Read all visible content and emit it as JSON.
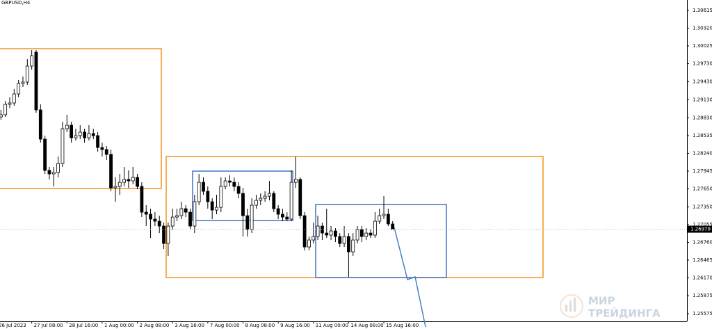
{
  "chart_data": {
    "type": "candlestick",
    "title": "GBPUSD,H4",
    "current_price_path": null,
    "categories": [
      "26 Jul 2023",
      null,
      null,
      null,
      null,
      null,
      null,
      null,
      "27 Jul 08:00",
      null,
      null,
      null,
      null,
      null,
      null,
      null,
      "28 Jul 16:00",
      null,
      null,
      null,
      null,
      null,
      null,
      null,
      "1 Aug 00:00",
      null,
      null,
      null,
      null,
      null,
      null,
      null,
      "2 Aug 08:00",
      null,
      null,
      null,
      null,
      null,
      null,
      null,
      "3 Aug 16:00",
      null,
      null,
      null,
      null,
      null,
      null,
      null,
      "7 Aug 00:00",
      null,
      null,
      null,
      null,
      null,
      null,
      null,
      "8 Aug 08:00",
      null,
      null,
      null,
      null,
      null,
      null,
      null,
      "9 Aug 16:00",
      null,
      null,
      null,
      null,
      null,
      null,
      null,
      "11 Aug 00:00",
      null,
      null,
      null,
      null,
      null,
      null,
      null,
      "14 Aug 08:00",
      null,
      null,
      null,
      null,
      null,
      null,
      null,
      "15 Aug 16:00",
      null,
      null
    ],
    "open": [
      1.288,
      1.28846,
      1.28881,
      1.29054,
      1.29077,
      1.29227,
      1.29401,
      1.29424,
      1.2969,
      1.29921,
      1.28962,
      1.28476,
      1.27956,
      1.27898,
      1.27921,
      1.28071,
      1.28649,
      1.28707,
      1.28499,
      1.28534,
      1.28592,
      1.28499,
      1.28569,
      1.28534,
      1.28337,
      1.28303,
      1.28222,
      1.27667,
      1.2769,
      1.27759,
      1.27806,
      1.27782,
      1.2784,
      1.2769,
      1.27262,
      1.27228,
      1.27147,
      1.27112,
      1.27031,
      1.26742,
      1.27031,
      1.27181,
      1.27204,
      1.2732,
      1.27262,
      1.27031,
      1.27436,
      1.27759,
      1.27609,
      1.27436,
      1.27297,
      1.27343,
      1.2769,
      1.27782,
      1.27759,
      1.2769,
      1.27574,
      1.27204,
      1.26973,
      1.27378,
      1.27459,
      1.27493,
      1.27528,
      1.27574,
      1.2732,
      1.27228,
      1.27181,
      1.27147,
      1.27759,
      1.27806,
      1.27204,
      1.26684,
      1.268,
      1.26858,
      1.27031,
      1.26915,
      1.26881,
      1.2695,
      1.26858,
      1.26742,
      1.26858,
      1.26603,
      1.268,
      1.26973,
      1.26858,
      1.26915,
      1.26881,
      1.27112,
      1.27204,
      1.27228,
      1.27066
    ],
    "high": [
      1.28938,
      1.28962,
      1.29112,
      1.2917,
      1.29308,
      1.29459,
      1.29516,
      1.29805,
      1.29956,
      1.29956,
      1.29054,
      1.28534,
      1.28014,
      1.28014,
      1.28187,
      1.28765,
      1.28881,
      1.28765,
      1.28649,
      1.28707,
      1.28649,
      1.28707,
      1.28649,
      1.28592,
      1.28418,
      1.2836,
      1.28303,
      1.2784,
      1.27898,
      1.28014,
      1.27956,
      1.28014,
      1.27898,
      1.27759,
      1.27378,
      1.2732,
      1.27262,
      1.27204,
      1.27089,
      1.27089,
      1.2732,
      1.2732,
      1.27436,
      1.27378,
      1.2732,
      1.27551,
      1.27898,
      1.2784,
      1.2769,
      1.27493,
      1.27551,
      1.2784,
      1.2784,
      1.27875,
      1.2784,
      1.27759,
      1.27667,
      1.2732,
      1.27493,
      1.27551,
      1.27574,
      1.27609,
      1.27782,
      1.27609,
      1.27378,
      1.2732,
      1.27262,
      1.27956,
      1.28187,
      1.2784,
      1.27262,
      1.26858,
      1.27089,
      1.27204,
      1.27089,
      1.2732,
      1.27031,
      1.26996,
      1.26915,
      1.27031,
      1.26915,
      1.26915,
      1.27031,
      1.27031,
      1.26996,
      1.26973,
      1.27262,
      1.2732,
      1.27528,
      1.2732,
      1.27112
    ],
    "low": [
      1.28753,
      1.288,
      1.28846,
      1.28996,
      1.29031,
      1.2917,
      1.29343,
      1.29378,
      1.29632,
      1.28915,
      1.28418,
      1.27898,
      1.27806,
      1.2769,
      1.2784,
      1.28014,
      1.28592,
      1.28418,
      1.28453,
      1.28476,
      1.28418,
      1.28453,
      1.28476,
      1.28268,
      1.28187,
      1.28129,
      1.27609,
      1.27436,
      1.27551,
      1.2769,
      1.27667,
      1.27725,
      1.27644,
      1.27181,
      1.27031,
      1.26835,
      1.27031,
      1.26915,
      1.2665,
      1.26534,
      1.26973,
      1.27112,
      1.27147,
      1.27181,
      1.26973,
      1.26915,
      1.27378,
      1.27551,
      1.2732,
      1.27147,
      1.27228,
      1.27262,
      1.27644,
      1.2769,
      1.27609,
      1.27493,
      1.26858,
      1.26858,
      1.26915,
      1.2732,
      1.27378,
      1.27436,
      1.27459,
      1.27262,
      1.27147,
      1.27112,
      1.27112,
      1.27112,
      1.27667,
      1.27147,
      1.26626,
      1.26626,
      1.26742,
      1.268,
      1.268,
      1.26835,
      1.268,
      1.26765,
      1.26684,
      1.26684,
      1.26187,
      1.26534,
      1.26742,
      1.26765,
      1.268,
      1.26835,
      1.26835,
      1.27066,
      1.27147,
      1.27031,
      1.26973
    ],
    "close": [
      1.28846,
      1.28881,
      1.29054,
      1.29077,
      1.29227,
      1.29401,
      1.29424,
      1.2969,
      1.29863,
      1.28962,
      1.28476,
      1.27956,
      1.27898,
      1.27921,
      1.28071,
      1.28649,
      1.28707,
      1.28499,
      1.28534,
      1.28592,
      1.28499,
      1.28569,
      1.28534,
      1.28337,
      1.28303,
      1.28222,
      1.27667,
      1.2769,
      1.27759,
      1.27806,
      1.27782,
      1.2784,
      1.2769,
      1.27262,
      1.27228,
      1.27147,
      1.27112,
      1.27031,
      1.26742,
      1.27031,
      1.27181,
      1.27204,
      1.2732,
      1.27262,
      1.27031,
      1.27436,
      1.27759,
      1.27609,
      1.27436,
      1.27297,
      1.27343,
      1.2769,
      1.27782,
      1.27759,
      1.2769,
      1.27574,
      1.27204,
      1.26973,
      1.27378,
      1.27459,
      1.27493,
      1.27528,
      1.27574,
      1.2732,
      1.27228,
      1.27181,
      1.27147,
      1.27759,
      1.27806,
      1.27204,
      1.26684,
      1.268,
      1.26858,
      1.27031,
      1.26915,
      1.26881,
      1.2695,
      1.26858,
      1.26742,
      1.26858,
      1.26603,
      1.268,
      1.26973,
      1.26858,
      1.26915,
      1.26881,
      1.27112,
      1.27204,
      1.27228,
      1.27066,
      1.26979
    ],
    "ylim": [
      1.25448,
      1.30788
    ],
    "yticks": [
      1.30615,
      {
        "value": 1.3032,
        "label": "1.30320"
      },
      1.30025,
      {
        "value": 1.2973,
        "label": "1.29730"
      },
      {
        "value": 1.2943,
        "label": "1.29430"
      },
      {
        "value": 1.2913,
        "label": "1.29130"
      },
      {
        "value": 1.2883,
        "label": "1.28830"
      },
      1.28535,
      {
        "value": 1.2824,
        "label": "1.28240"
      },
      1.27945,
      {
        "value": 1.2765,
        "label": "1.27650"
      },
      {
        "value": 1.2735,
        "label": "1.27350"
      },
      1.27055,
      {
        "value": 1.2676,
        "label": "1.26760"
      },
      1.26465,
      {
        "value": 1.2617,
        "label": "1.26170"
      },
      1.25875,
      1.25575
    ],
    "grid": false,
    "up_color": "#ffffff",
    "down_color": "#000000",
    "watermark": [
      "МИР",
      "ТРЕЙДИНГА"
    ]
  }
}
